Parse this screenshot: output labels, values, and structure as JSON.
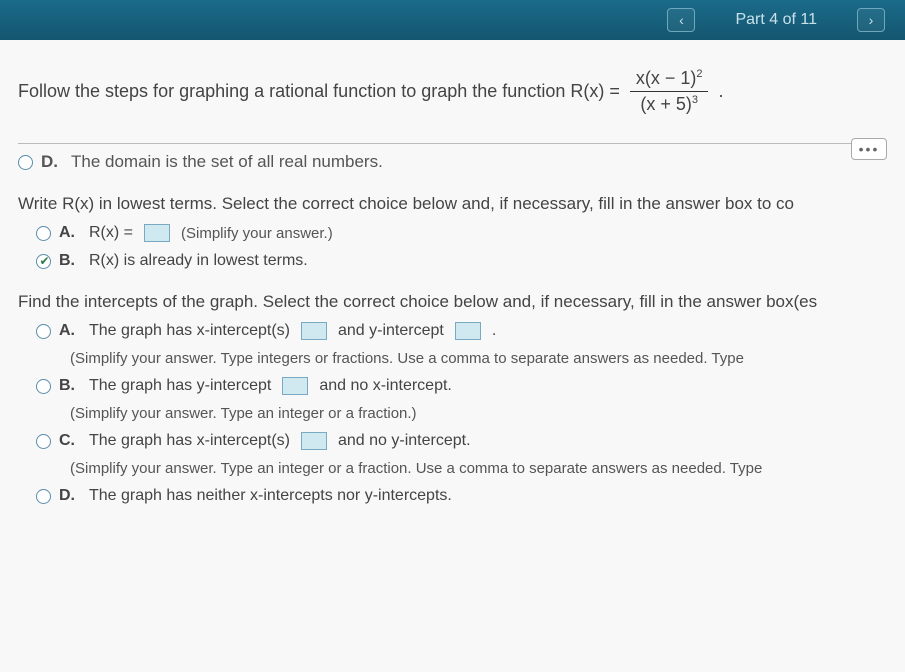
{
  "header": {
    "prev_icon": "‹",
    "part_label": "Part 4 of 11",
    "next_icon": "›"
  },
  "prompt": {
    "text_before": "Follow the steps for graphing a rational function to graph the function R(x) =",
    "numerator": "x(x − 1)",
    "num_exp": "2",
    "denominator": "(x + 5)",
    "den_exp": "3",
    "text_after": "."
  },
  "prev_choice": {
    "letter": "D.",
    "text": "The domain is the set of all real numbers."
  },
  "q_lowest": {
    "prompt": "Write R(x) in lowest terms. Select the correct choice below and, if necessary, fill in the answer box to co",
    "optA": {
      "letter": "A.",
      "label_before": "R(x) =",
      "hint": "(Simplify your answer.)"
    },
    "optB": {
      "letter": "B.",
      "text": "R(x) is already in lowest terms."
    }
  },
  "q_intercepts": {
    "prompt": "Find the intercepts of the graph. Select the correct choice below and, if necessary, fill in the answer box(es",
    "optA": {
      "letter": "A.",
      "t1": "The graph has x-intercept(s)",
      "t2": "and y-intercept",
      "t3": ".",
      "hint": "(Simplify your answer. Type integers or fractions. Use a comma to separate answers as needed. Type"
    },
    "optB": {
      "letter": "B.",
      "t1": "The graph has y-intercept",
      "t2": "and no x-intercept.",
      "hint": "(Simplify your answer. Type an integer or a fraction.)"
    },
    "optC": {
      "letter": "C.",
      "t1": "The graph has x-intercept(s)",
      "t2": "and no y-intercept.",
      "hint": "(Simplify your answer. Type an integer or a fraction. Use a comma to separate answers as needed. Type"
    },
    "optD": {
      "letter": "D.",
      "text": "The graph has neither x-intercepts nor y-intercepts."
    }
  },
  "dots": "•••",
  "colors": {
    "header_bg": "#14566f",
    "input_bg": "#d0e8f0"
  }
}
